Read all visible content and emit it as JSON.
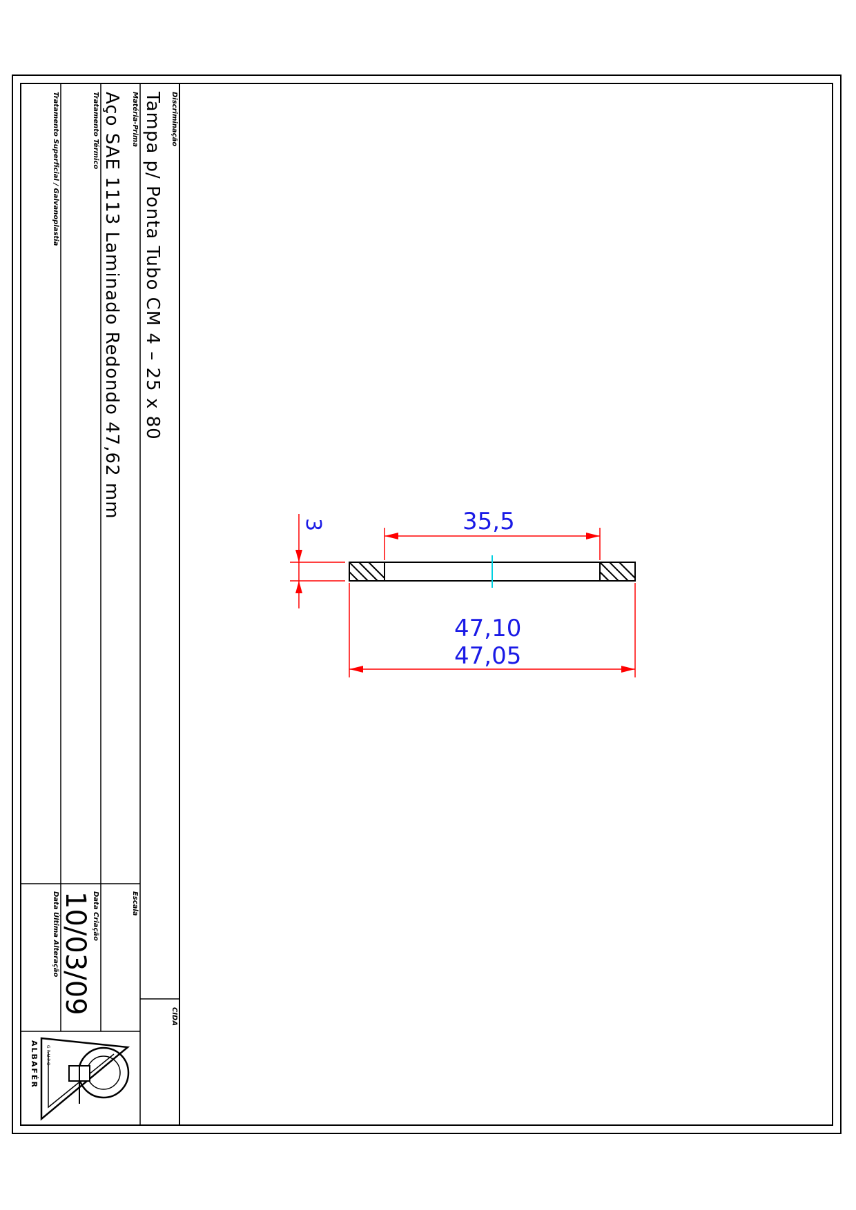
{
  "title_block": {
    "discriminacao_label": "Discriminação",
    "discriminacao_value": "Tampa p/ Ponta Tubo CM 4 – 25 x 80",
    "materia_prima_label": "Matéria-Prima",
    "materia_prima_value": "Aço SAE 1113 Laminado Redondo 47,62 mm",
    "tratamento_termico_label": "Tratamento Térmico",
    "tratamento_termico_value": "",
    "tratamento_superficial_label": "Tratamento Superficial / Galvanoplastia",
    "tratamento_superficial_value": "",
    "escala_label": "Escala",
    "escala_value": "",
    "data_criacao_label": "Data Criação",
    "data_criacao_value": "10/03/09",
    "data_ultima_alteracao_label": "Data Última Alteração",
    "data_ultima_alteracao_value": "",
    "code_label": "CIDA",
    "logo_text_top": "GRUPO",
    "logo_text_bottom": "ALBAFÉR"
  },
  "drawing": {
    "dim_inner": "35,5",
    "dim_thickness": "3",
    "dim_outer_max": "47,10",
    "dim_outer_min": "47,05",
    "colors": {
      "dimension_line": "#ff0000",
      "dimension_text": "#1a1ae6",
      "center_line": "#00d0e0",
      "outline": "#000000"
    }
  }
}
